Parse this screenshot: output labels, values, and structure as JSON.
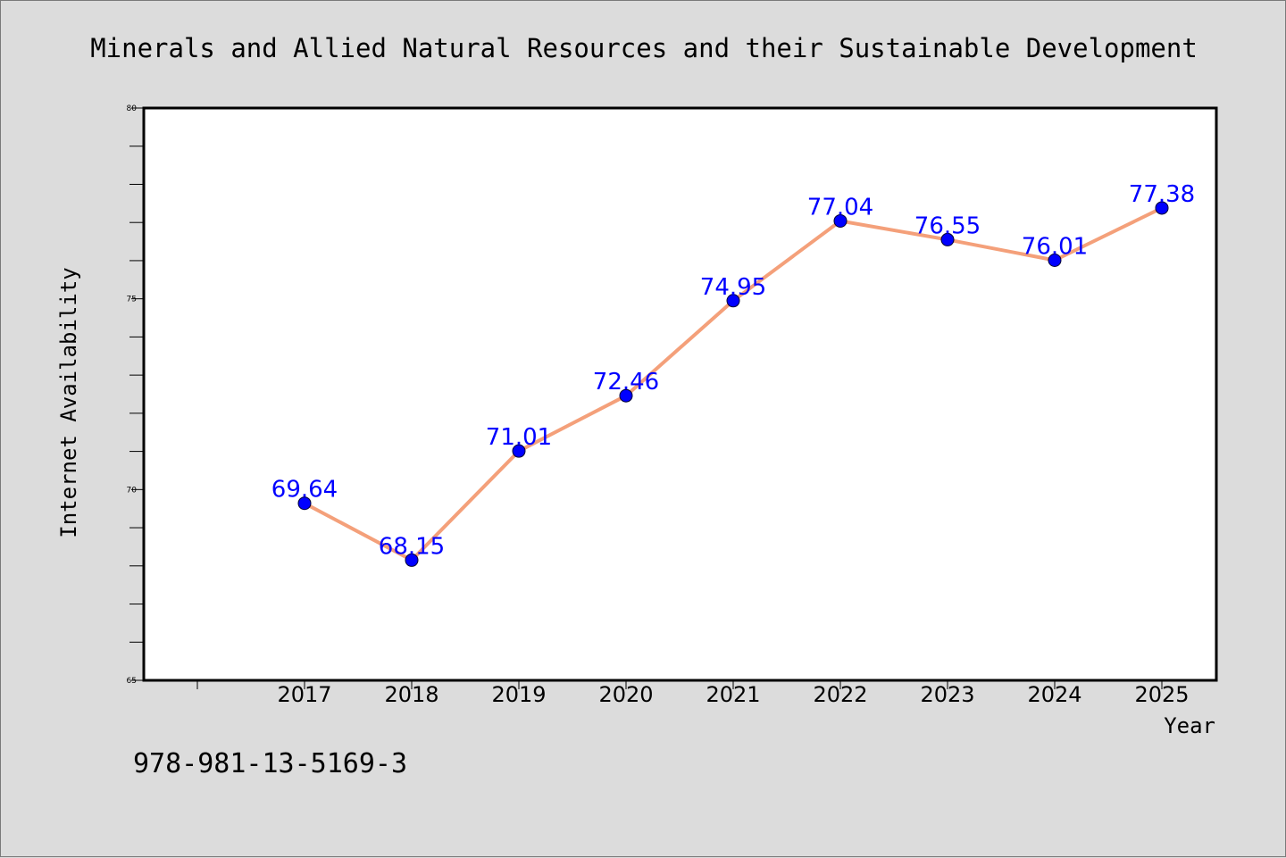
{
  "chart_data": {
    "type": "line",
    "title": "Minerals and Allied Natural Resources and their Sustainable Development",
    "xlabel": "Year",
    "ylabel": "Internet Availability",
    "categories": [
      "2017",
      "2018",
      "2019",
      "2020",
      "2021",
      "2022",
      "2023",
      "2024",
      "2025"
    ],
    "series": [
      {
        "values": [
          69.64,
          68.15,
          71.01,
          72.46,
          74.95,
          77.04,
          76.55,
          76.01,
          77.38
        ],
        "line_color": "#f4a07a",
        "marker_color": "#0000ff"
      }
    ],
    "data_labels": [
      "69.64",
      "68.15",
      "71.01",
      "72.46",
      "74.95",
      "77.04",
      "76.55",
      "76.01",
      "77.38"
    ],
    "ylim": [
      65,
      80
    ],
    "yticks": [
      65,
      70,
      75,
      80
    ],
    "ytick_labels": [
      "65",
      "70",
      "75",
      "80"
    ],
    "grid": false,
    "legend": "none",
    "annotation": "978-981-13-5169-3"
  },
  "colors": {
    "background": "#dcdcdc",
    "plot_background": "#ffffff",
    "line": "#f4a07a",
    "marker": "#0000ff",
    "data_label": "#0000ff"
  }
}
